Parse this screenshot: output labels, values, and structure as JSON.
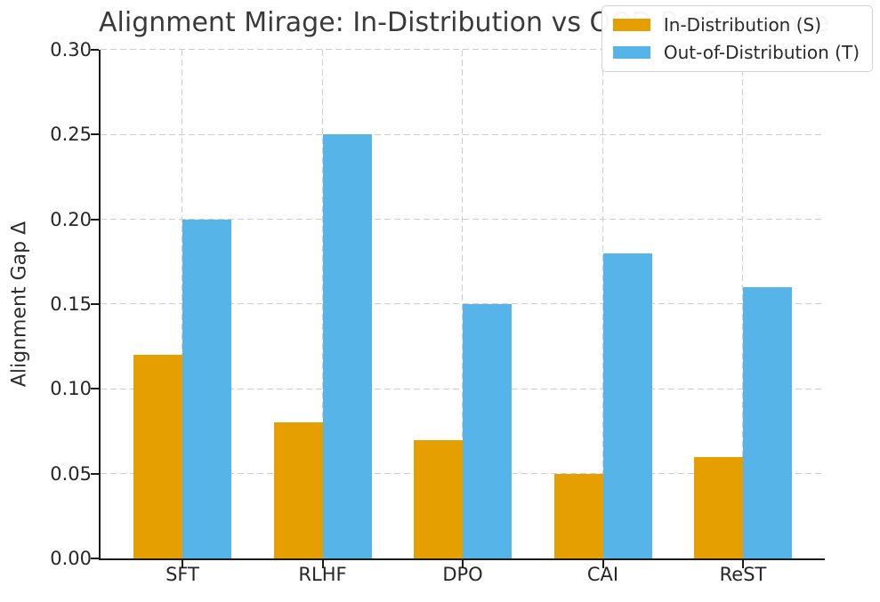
{
  "title": "Alignment Mirage: In-Distribution vs OOD Performance",
  "chart_data": {
    "type": "bar",
    "categories": [
      "SFT",
      "RLHF",
      "DPO",
      "CAI",
      "ReST"
    ],
    "series": [
      {
        "name": "In-Distribution (S)",
        "color": "#E69F00",
        "values": [
          0.12,
          0.08,
          0.07,
          0.05,
          0.06
        ]
      },
      {
        "name": "Out-of-Distribution (T)",
        "color": "#56B4E9",
        "values": [
          0.2,
          0.25,
          0.15,
          0.18,
          0.16
        ]
      }
    ],
    "title": "Alignment Mirage: In-Distribution vs OOD Performance",
    "xlabel": "",
    "ylabel": "Alignment Gap Δ",
    "ylim": [
      0,
      0.3
    ],
    "yticks": [
      {
        "value": 0.0,
        "label": "0.00"
      },
      {
        "value": 0.05,
        "label": "0.05"
      },
      {
        "value": 0.1,
        "label": "0.10"
      },
      {
        "value": 0.15,
        "label": "0.15"
      },
      {
        "value": 0.2,
        "label": "0.20"
      },
      {
        "value": 0.25,
        "label": "0.25"
      },
      {
        "value": 0.3,
        "label": "0.30"
      }
    ],
    "grid": "dashed, horizontal and vertical",
    "legend_position": "upper right",
    "grid_color": "#cdcdcd",
    "spine_color": "#1a1a1a",
    "text_color": "#262626"
  }
}
